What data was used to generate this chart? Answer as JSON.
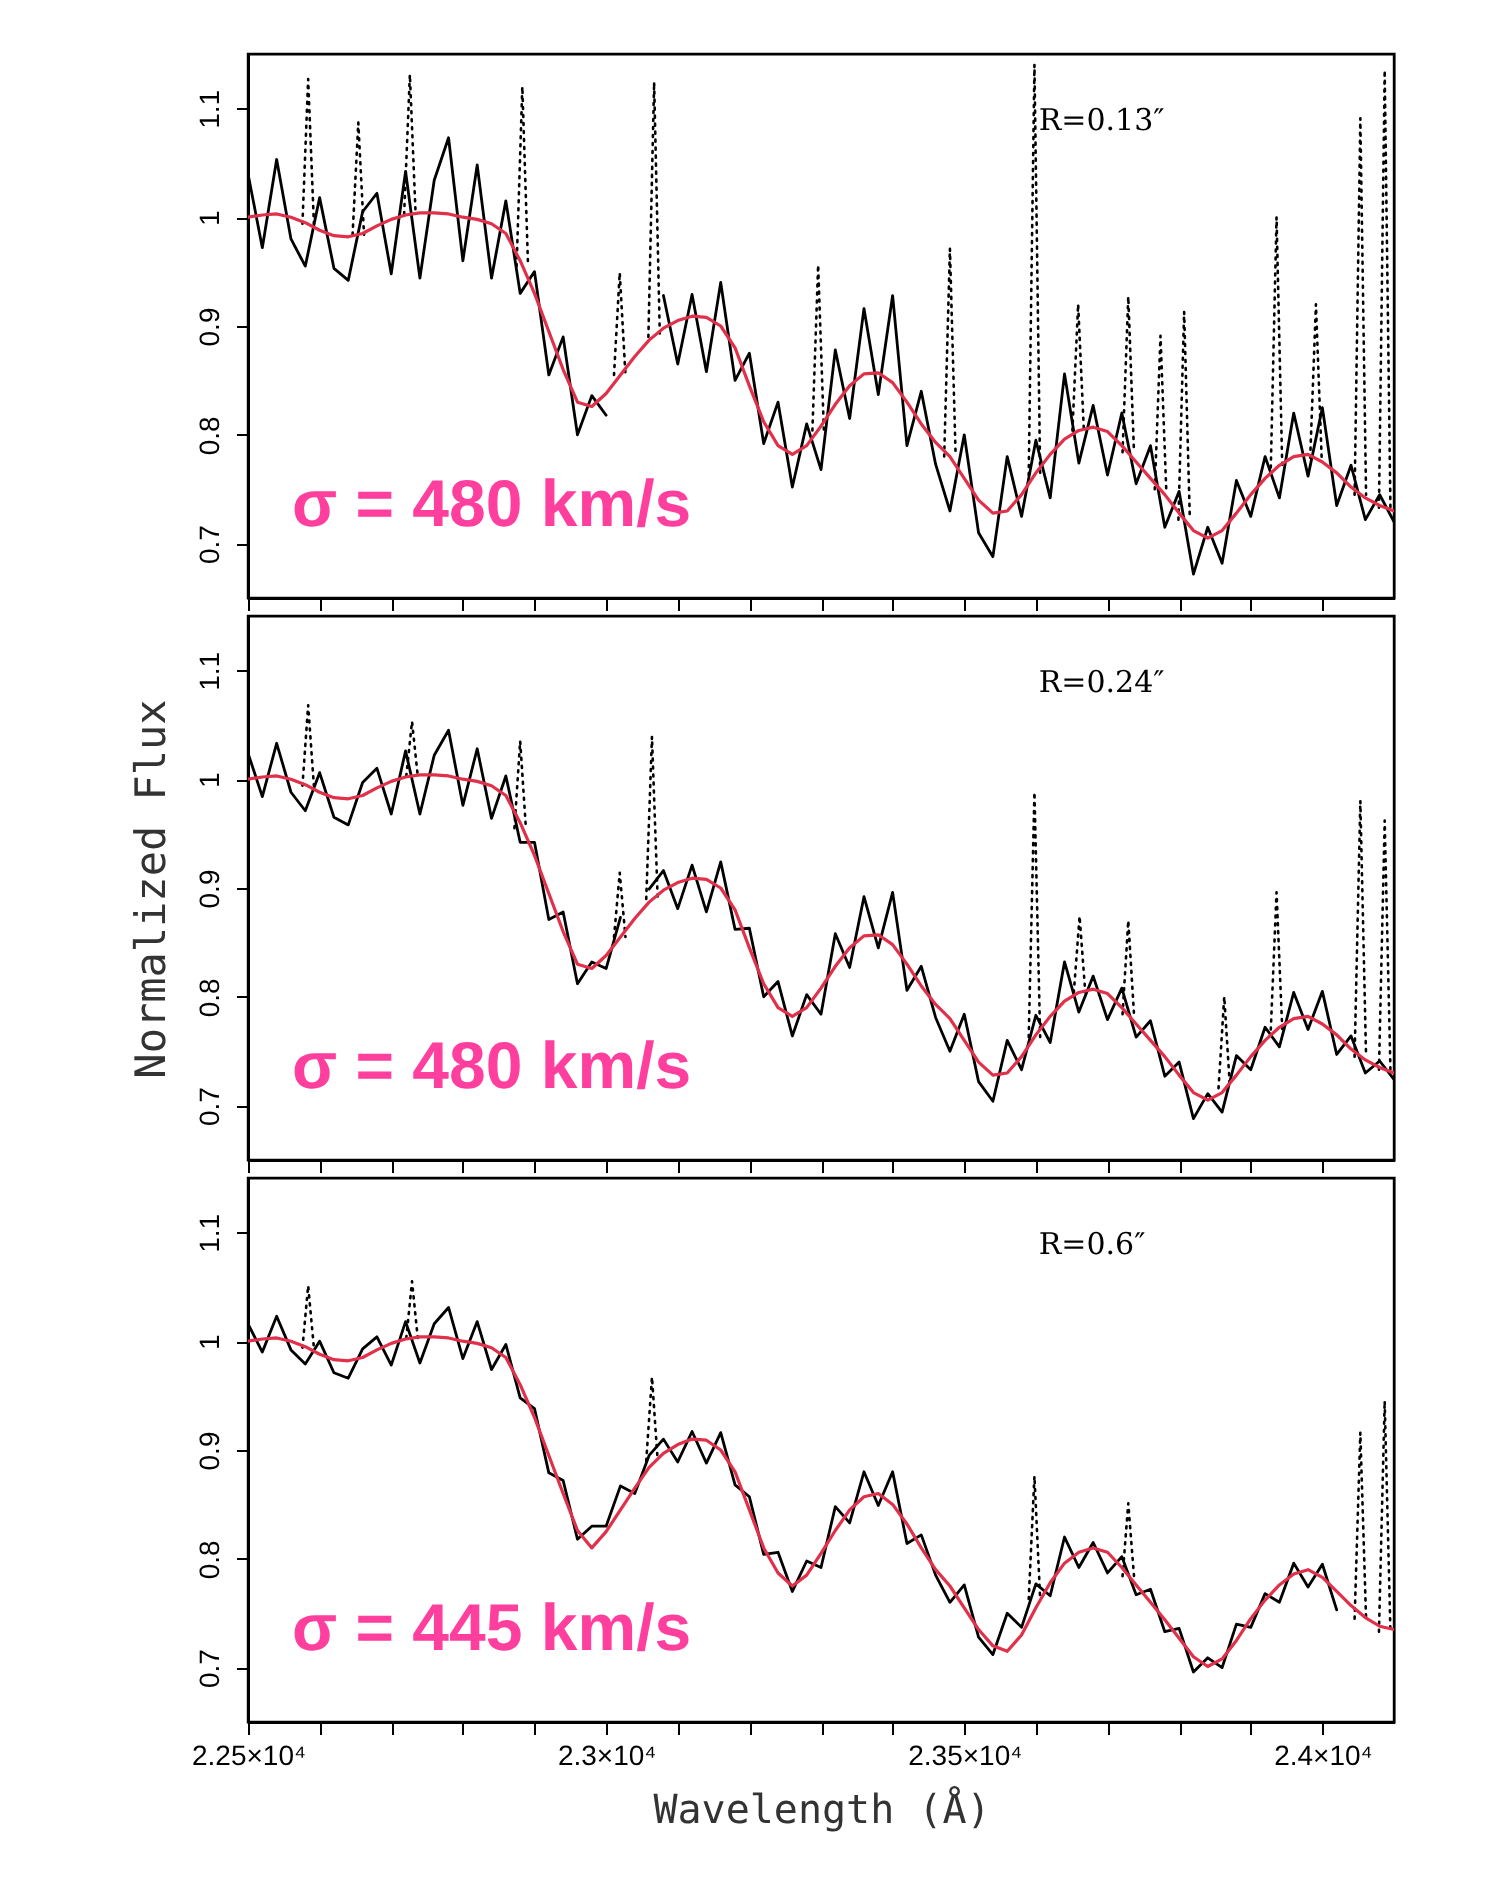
{
  "chart_data": [
    {
      "type": "line",
      "xlim": [
        22500,
        24100
      ],
      "ylim": [
        0.65,
        1.15
      ],
      "yticks": [
        0.7,
        0.8,
        0.9,
        1,
        1.1
      ],
      "tick_labels": "y",
      "xticks": [
        {
          "value": 22500,
          "label": null
        },
        {
          "value": 22600,
          "label": null
        },
        {
          "value": 22700,
          "label": null
        },
        {
          "value": 22800,
          "label": null
        },
        {
          "value": 22900,
          "label": null
        },
        {
          "value": 23000,
          "label": null
        },
        {
          "value": 23100,
          "label": null
        },
        {
          "value": 23200,
          "label": null
        },
        {
          "value": 23300,
          "label": null
        },
        {
          "value": 23400,
          "label": null
        },
        {
          "value": 23500,
          "label": null
        },
        {
          "value": 23600,
          "label": null
        },
        {
          "value": 23700,
          "label": null
        },
        {
          "value": 23800,
          "label": null
        },
        {
          "value": 23900,
          "label": null
        },
        {
          "value": 24000,
          "label": null
        }
      ],
      "annotations": [
        "R=0.13″",
        "σ = 480 km/s"
      ],
      "x": [
        22500,
        22520,
        22540,
        22560,
        22580,
        22600,
        22620,
        22640,
        22660,
        22680,
        22700,
        22720,
        22740,
        22760,
        22780,
        22800,
        22820,
        22840,
        22860,
        22880,
        22900,
        22920,
        22940,
        22960,
        22980,
        23000,
        23020,
        23040,
        23060,
        23080,
        23100,
        23120,
        23140,
        23160,
        23180,
        23200,
        23220,
        23240,
        23260,
        23280,
        23300,
        23320,
        23340,
        23360,
        23380,
        23400,
        23420,
        23440,
        23460,
        23480,
        23500,
        23520,
        23540,
        23560,
        23580,
        23600,
        23620,
        23640,
        23660,
        23680,
        23700,
        23720,
        23740,
        23760,
        23780,
        23800,
        23820,
        23840,
        23860,
        23880,
        23900,
        23920,
        23940,
        23960,
        23980,
        24000,
        24020,
        24040,
        24060,
        24080,
        24100
      ],
      "series": [
        {
          "color": "#000000",
          "line_style": "dotted",
          "x": [
            22576,
            22584,
            22592,
            22593,
            22646,
            22654,
            22662,
            22663,
            22718,
            22726,
            22734,
            22735,
            22875,
            22883,
            22891,
            22892,
            23011,
            23019,
            23027,
            23028,
            23059,
            23067,
            23075,
            23076,
            23288,
            23296,
            23304,
            23305,
            23472,
            23480,
            23488,
            23489,
            23590,
            23598,
            23606,
            23607,
            23651,
            23659,
            23667,
            23668,
            23721,
            23729,
            23737,
            23738,
            23766,
            23774,
            23782,
            23783,
            23799,
            23807,
            23815,
            23816,
            23928,
            23936,
            23944,
            23945,
            23983,
            23991,
            23999,
            24000,
            24045,
            24053,
            24061,
            24062,
            24079,
            24087,
            24095
          ],
          "values": [
            0.994,
            1.127,
            0.994,
            null,
            0.984,
            1.087,
            0.984,
            null,
            1.003,
            1.131,
            1.003,
            null,
            0.955,
            1.12,
            0.955,
            null,
            0.855,
            0.949,
            0.855,
            null,
            0.89,
            1.124,
            0.89,
            null,
            0.804,
            0.956,
            0.804,
            null,
            0.78,
            0.971,
            0.78,
            null,
            0.763,
            1.14,
            0.763,
            null,
            0.804,
            0.92,
            0.804,
            null,
            0.784,
            0.927,
            0.784,
            null,
            0.75,
            0.891,
            0.75,
            null,
            0.722,
            0.913,
            0.722,
            null,
            0.77,
            1.0,
            0.77,
            null,
            0.779,
            0.92,
            0.779,
            null,
            0.745,
            1.091,
            0.745,
            null,
            0.733,
            1.135,
            0.733
          ]
        },
        {
          "color": "#000000",
          "line_style": "solid",
          "values": [
            1.04,
            0.972,
            1.053,
            0.98,
            0.955,
            1.018,
            0.953,
            0.942,
            1.005,
            1.022,
            0.948,
            1.042,
            0.944,
            1.034,
            1.073,
            0.96,
            1.048,
            0.944,
            1.015,
            0.93,
            0.95,
            0.855,
            0.89,
            0.8,
            0.836,
            0.818,
            null,
            null,
            null,
            0.928,
            0.865,
            0.929,
            0.858,
            0.94,
            0.85,
            0.875,
            0.792,
            0.83,
            0.752,
            0.81,
            0.768,
            0.878,
            0.815,
            0.916,
            0.837,
            0.928,
            0.79,
            0.84,
            0.773,
            0.73,
            0.8,
            0.71,
            0.688,
            0.78,
            0.725,
            0.795,
            0.742,
            0.856,
            0.774,
            0.827,
            0.763,
            0.82,
            0.755,
            0.79,
            0.715,
            0.748,
            0.672,
            0.715,
            0.682,
            0.758,
            0.725,
            0.78,
            0.742,
            0.82,
            0.762,
            0.825,
            0.735,
            0.772,
            0.722,
            0.745,
            0.72
          ]
        },
        {
          "color": "#e0304a",
          "line_style": "solid",
          "values": [
            1.0,
            1.002,
            1.003,
            1.0,
            0.995,
            0.988,
            0.983,
            0.982,
            0.985,
            0.992,
            0.998,
            1.002,
            1.004,
            1.004,
            1.003,
            1.0,
            0.998,
            0.994,
            0.985,
            0.96,
            0.93,
            0.895,
            0.86,
            0.83,
            0.826,
            0.838,
            0.855,
            0.872,
            0.887,
            0.898,
            0.905,
            0.909,
            0.908,
            0.9,
            0.88,
            0.845,
            0.812,
            0.79,
            0.782,
            0.79,
            0.808,
            0.828,
            0.845,
            0.856,
            0.857,
            0.848,
            0.83,
            0.81,
            0.793,
            0.78,
            0.76,
            0.74,
            0.728,
            0.73,
            0.745,
            0.765,
            0.782,
            0.796,
            0.804,
            0.807,
            0.803,
            0.79,
            0.775,
            0.76,
            0.745,
            0.728,
            0.712,
            0.705,
            0.712,
            0.728,
            0.745,
            0.76,
            0.772,
            0.78,
            0.782,
            0.775,
            0.765,
            0.752,
            0.742,
            0.735,
            0.73
          ]
        }
      ]
    },
    {
      "type": "line",
      "xlim": [
        22500,
        24100
      ],
      "ylim": [
        0.65,
        1.15
      ],
      "yticks": [
        0.7,
        0.8,
        0.9,
        1,
        1.1
      ],
      "tick_labels": "y",
      "ylabel": "Normalized Flux",
      "xticks": [
        {
          "value": 22500,
          "label": null
        },
        {
          "value": 22600,
          "label": null
        },
        {
          "value": 22700,
          "label": null
        },
        {
          "value": 22800,
          "label": null
        },
        {
          "value": 22900,
          "label": null
        },
        {
          "value": 23000,
          "label": null
        },
        {
          "value": 23100,
          "label": null
        },
        {
          "value": 23200,
          "label": null
        },
        {
          "value": 23300,
          "label": null
        },
        {
          "value": 23400,
          "label": null
        },
        {
          "value": 23500,
          "label": null
        },
        {
          "value": 23600,
          "label": null
        },
        {
          "value": 23700,
          "label": null
        },
        {
          "value": 23800,
          "label": null
        },
        {
          "value": 23900,
          "label": null
        },
        {
          "value": 24000,
          "label": null
        }
      ],
      "annotations": [
        "R=0.24″",
        "σ = 480 km/s"
      ],
      "x": [
        22500,
        22520,
        22540,
        22560,
        22580,
        22600,
        22620,
        22640,
        22660,
        22680,
        22700,
        22720,
        22740,
        22760,
        22780,
        22800,
        22820,
        22840,
        22860,
        22880,
        22900,
        22920,
        22940,
        22960,
        22980,
        23000,
        23020,
        23040,
        23060,
        23080,
        23100,
        23120,
        23140,
        23160,
        23180,
        23200,
        23220,
        23240,
        23260,
        23280,
        23300,
        23320,
        23340,
        23360,
        23380,
        23400,
        23420,
        23440,
        23460,
        23480,
        23500,
        23520,
        23540,
        23560,
        23580,
        23600,
        23620,
        23640,
        23660,
        23680,
        23700,
        23720,
        23740,
        23760,
        23780,
        23800,
        23820,
        23840,
        23860,
        23880,
        23900,
        23920,
        23940,
        23960,
        23980,
        24000,
        24020,
        24040,
        24060,
        24080,
        24100
      ],
      "series": [
        {
          "color": "#000000",
          "line_style": "dotted",
          "x": [
            22576,
            22584,
            22592,
            22593,
            22721,
            22729,
            22737,
            22738,
            22872,
            22880,
            22888,
            22889,
            23011,
            23019,
            23027,
            23028,
            23056,
            23064,
            23072,
            23073,
            23590,
            23598,
            23606,
            23607,
            23653,
            23661,
            23669,
            23670,
            23721,
            23729,
            23737,
            23738,
            23855,
            23863,
            23871,
            23872,
            23928,
            23936,
            23944,
            23945,
            24045,
            24053,
            24061,
            24062,
            24079,
            24087,
            24095
          ],
          "values": [
            0.994,
            1.068,
            0.994,
            null,
            1.003,
            1.053,
            1.003,
            null,
            0.955,
            1.035,
            0.955,
            null,
            0.855,
            0.914,
            0.855,
            null,
            0.89,
            1.039,
            0.89,
            null,
            0.763,
            0.988,
            0.763,
            null,
            0.804,
            0.874,
            0.804,
            null,
            0.784,
            0.87,
            0.784,
            null,
            0.716,
            0.8,
            0.716,
            null,
            0.77,
            0.896,
            0.77,
            null,
            0.745,
            0.98,
            0.745,
            null,
            0.733,
            0.962,
            0.733
          ]
        },
        {
          "color": "#000000",
          "line_style": "solid",
          "values": [
            1.024,
            0.984,
            1.033,
            0.988,
            0.971,
            1.006,
            0.965,
            0.958,
            0.997,
            1.01,
            0.968,
            1.026,
            0.968,
            1.022,
            1.045,
            0.976,
            1.028,
            0.964,
            1.003,
            0.942,
            0.942,
            0.871,
            0.878,
            0.812,
            0.832,
            0.826,
            0.873,
            null,
            0.899,
            0.916,
            0.881,
            0.921,
            0.878,
            0.924,
            0.862,
            0.863,
            0.8,
            0.814,
            0.764,
            0.802,
            0.784,
            0.858,
            0.827,
            0.892,
            0.845,
            0.896,
            0.806,
            0.828,
            0.781,
            0.75,
            0.784,
            0.722,
            0.704,
            0.76,
            0.733,
            0.783,
            0.758,
            0.832,
            0.786,
            0.819,
            0.779,
            0.808,
            0.763,
            0.778,
            0.727,
            0.74,
            0.688,
            0.711,
            0.694,
            0.746,
            0.733,
            0.772,
            0.754,
            0.804,
            0.77,
            0.805,
            0.747,
            0.764,
            0.73,
            0.741,
            0.724
          ]
        },
        {
          "color": "#e0304a",
          "line_style": "solid",
          "values": [
            1.0,
            1.002,
            1.003,
            1.0,
            0.995,
            0.988,
            0.983,
            0.982,
            0.985,
            0.992,
            0.998,
            1.002,
            1.004,
            1.004,
            1.003,
            1.0,
            0.998,
            0.994,
            0.985,
            0.96,
            0.93,
            0.895,
            0.86,
            0.83,
            0.826,
            0.838,
            0.855,
            0.872,
            0.887,
            0.898,
            0.905,
            0.909,
            0.908,
            0.9,
            0.88,
            0.845,
            0.812,
            0.79,
            0.782,
            0.79,
            0.808,
            0.828,
            0.845,
            0.856,
            0.857,
            0.848,
            0.83,
            0.81,
            0.793,
            0.78,
            0.76,
            0.74,
            0.728,
            0.73,
            0.745,
            0.765,
            0.782,
            0.796,
            0.804,
            0.807,
            0.803,
            0.79,
            0.775,
            0.76,
            0.745,
            0.728,
            0.712,
            0.705,
            0.712,
            0.728,
            0.745,
            0.76,
            0.772,
            0.78,
            0.782,
            0.775,
            0.765,
            0.752,
            0.742,
            0.735,
            0.73
          ]
        }
      ]
    },
    {
      "type": "line",
      "xlim": [
        22500,
        24100
      ],
      "ylim": [
        0.65,
        1.15
      ],
      "yticks": [
        0.7,
        0.8,
        0.9,
        1,
        1.1
      ],
      "xlabel": "Wavelength (Å)",
      "xticks": [
        {
          "value": 22500,
          "label": "2.25×10⁴"
        },
        {
          "value": 22600,
          "label": null
        },
        {
          "value": 22700,
          "label": null
        },
        {
          "value": 22800,
          "label": null
        },
        {
          "value": 22900,
          "label": null
        },
        {
          "value": 23000,
          "label": "2.3×10⁴"
        },
        {
          "value": 23100,
          "label": null
        },
        {
          "value": 23200,
          "label": null
        },
        {
          "value": 23300,
          "label": null
        },
        {
          "value": 23400,
          "label": null
        },
        {
          "value": 23500,
          "label": "2.35×10⁴"
        },
        {
          "value": 23600,
          "label": null
        },
        {
          "value": 23700,
          "label": null
        },
        {
          "value": 23800,
          "label": null
        },
        {
          "value": 23900,
          "label": null
        },
        {
          "value": 24000,
          "label": "2.4×10⁴"
        }
      ],
      "annotations": [
        "R=0.6″",
        "σ = 445 km/s"
      ],
      "x": [
        22500,
        22520,
        22540,
        22560,
        22580,
        22600,
        22620,
        22640,
        22660,
        22680,
        22700,
        22720,
        22740,
        22760,
        22780,
        22800,
        22820,
        22840,
        22860,
        22880,
        22900,
        22920,
        22940,
        22960,
        22980,
        23000,
        23020,
        23040,
        23060,
        23080,
        23100,
        23120,
        23140,
        23160,
        23180,
        23200,
        23220,
        23240,
        23260,
        23280,
        23300,
        23320,
        23340,
        23360,
        23380,
        23400,
        23420,
        23440,
        23460,
        23480,
        23500,
        23520,
        23540,
        23560,
        23580,
        23600,
        23620,
        23640,
        23660,
        23680,
        23700,
        23720,
        23740,
        23760,
        23780,
        23800,
        23820,
        23840,
        23860,
        23880,
        23900,
        23920,
        23940,
        23960,
        23980,
        24000,
        24020,
        24040,
        24060,
        24080,
        24100
      ],
      "series": [
        {
          "color": "#000000",
          "line_style": "dotted",
          "x": [
            22576,
            22584,
            22592,
            22593,
            22721,
            22729,
            22737,
            22738,
            23056,
            23064,
            23072,
            23073,
            23590,
            23598,
            23606,
            23607,
            23721,
            23729,
            23737,
            23738,
            24045,
            24053,
            24061,
            24062,
            24079,
            24087,
            24095
          ],
          "values": [
            0.994,
            1.051,
            0.994,
            null,
            1.003,
            1.055,
            1.003,
            null,
            0.89,
            0.967,
            0.89,
            null,
            0.763,
            0.876,
            0.763,
            null,
            0.784,
            0.851,
            0.784,
            null,
            0.745,
            0.916,
            0.745,
            null,
            0.733,
            0.945,
            0.733
          ]
        },
        {
          "color": "#000000",
          "line_style": "solid",
          "values": [
            1.016,
            0.99,
            1.023,
            0.992,
            0.979,
            1.0,
            0.971,
            0.966,
            0.993,
            1.004,
            0.978,
            1.018,
            0.98,
            1.016,
            1.031,
            0.984,
            1.018,
            0.974,
            0.997,
            0.948,
            0.938,
            0.879,
            0.872,
            0.818,
            0.83,
            0.83,
            0.867,
            0.86,
            0.895,
            0.91,
            0.889,
            0.917,
            0.888,
            0.916,
            0.868,
            0.857,
            0.804,
            0.806,
            0.77,
            0.798,
            0.792,
            0.848,
            0.833,
            0.88,
            0.849,
            0.88,
            0.814,
            0.822,
            0.785,
            0.76,
            0.776,
            0.728,
            0.712,
            0.75,
            0.737,
            0.777,
            0.766,
            0.82,
            0.792,
            0.815,
            0.787,
            0.802,
            0.767,
            0.772,
            0.733,
            0.736,
            0.696,
            0.709,
            0.7,
            0.74,
            0.737,
            0.768,
            0.76,
            0.796,
            0.774,
            0.795,
            0.753,
            null,
            null,
            null,
            null
          ]
        },
        {
          "color": "#e0304a",
          "line_style": "solid",
          "values": [
            1.0,
            1.002,
            1.003,
            1.0,
            0.995,
            0.988,
            0.983,
            0.982,
            0.985,
            0.992,
            0.998,
            1.002,
            1.004,
            1.004,
            1.003,
            1.0,
            0.998,
            0.994,
            0.985,
            0.96,
            0.93,
            0.895,
            0.86,
            0.826,
            0.81,
            0.825,
            0.845,
            0.865,
            0.884,
            0.897,
            0.905,
            0.91,
            0.909,
            0.9,
            0.88,
            0.845,
            0.81,
            0.787,
            0.775,
            0.785,
            0.805,
            0.826,
            0.845,
            0.857,
            0.86,
            0.85,
            0.832,
            0.81,
            0.79,
            0.775,
            0.755,
            0.735,
            0.72,
            0.715,
            0.73,
            0.755,
            0.778,
            0.796,
            0.806,
            0.81,
            0.806,
            0.792,
            0.776,
            0.76,
            0.744,
            0.727,
            0.71,
            0.701,
            0.708,
            0.725,
            0.745,
            0.762,
            0.776,
            0.786,
            0.79,
            0.783,
            0.77,
            0.757,
            0.746,
            0.738,
            0.735
          ]
        }
      ]
    }
  ]
}
